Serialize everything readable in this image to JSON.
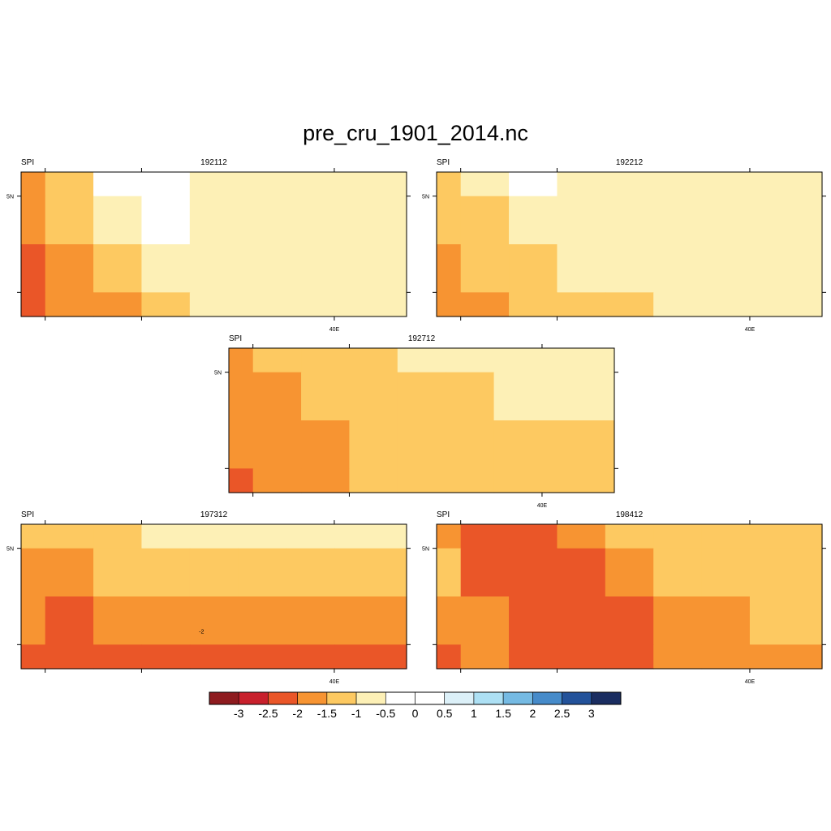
{
  "figure": {
    "title": "pre_cru_1901_2014.nc"
  },
  "chart_data": [
    {
      "type": "heatmap",
      "left_string": "SPI",
      "center_string": "192112",
      "x_tick_label": "40E",
      "y_tick_label": "5N",
      "grid": false,
      "rows": [
        [
          -1.75,
          -1.25,
          0,
          0,
          -0.75,
          -0.75,
          -0.75,
          -0.75
        ],
        [
          -1.75,
          -1.25,
          -0.75,
          0,
          -0.75,
          -0.75,
          -0.75,
          -0.75
        ],
        [
          -2.25,
          -1.75,
          -1.25,
          -0.75,
          -0.75,
          -0.75,
          -0.75,
          -0.75
        ],
        [
          -2.25,
          -1.75,
          -1.75,
          -1.25,
          -0.75,
          -0.75,
          -0.75,
          -0.75
        ]
      ]
    },
    {
      "type": "heatmap",
      "left_string": "SPI",
      "center_string": "192212",
      "x_tick_label": "40E",
      "y_tick_label": "5N",
      "grid": false,
      "rows": [
        [
          -1.25,
          -0.75,
          0,
          -0.75,
          -0.75,
          -0.75,
          -0.75,
          -0.75
        ],
        [
          -1.25,
          -1.25,
          -0.75,
          -0.75,
          -0.75,
          -0.75,
          -0.75,
          -0.75
        ],
        [
          -1.75,
          -1.25,
          -1.25,
          -0.75,
          -0.75,
          -0.75,
          -0.75,
          -0.75
        ],
        [
          -1.75,
          -1.75,
          -1.25,
          -1.25,
          -1.25,
          -0.75,
          -0.75,
          -0.75
        ]
      ]
    },
    {
      "type": "heatmap",
      "left_string": "SPI",
      "center_string": "192712",
      "x_tick_label": "40E",
      "y_tick_label": "5N",
      "grid": false,
      "rows": [
        [
          -1.75,
          -1.25,
          -1.25,
          -1.25,
          -0.75,
          -0.75,
          -0.75,
          -0.75
        ],
        [
          -1.75,
          -1.75,
          -1.25,
          -1.25,
          -1.25,
          -1.25,
          -0.75,
          -0.75
        ],
        [
          -1.75,
          -1.75,
          -1.75,
          -1.25,
          -1.25,
          -1.25,
          -1.25,
          -1.25
        ],
        [
          -2.25,
          -1.75,
          -1.75,
          -1.25,
          -1.25,
          -1.25,
          -1.25,
          -1.25
        ]
      ]
    },
    {
      "type": "heatmap",
      "left_string": "SPI",
      "center_string": "197312",
      "x_tick_label": "40E",
      "y_tick_label": "5N",
      "grid": false,
      "annotation": "-2",
      "rows": [
        [
          -1.25,
          -1.25,
          -1.25,
          -0.75,
          -0.75,
          -0.75,
          -0.75,
          -0.75
        ],
        [
          -1.75,
          -1.75,
          -1.25,
          -1.25,
          -1.25,
          -1.25,
          -1.25,
          -1.25
        ],
        [
          -1.75,
          -2.25,
          -1.75,
          -1.75,
          -1.75,
          -1.75,
          -1.75,
          -1.75
        ],
        [
          -2.25,
          -2.25,
          -2.25,
          -2.25,
          -2.25,
          -2.25,
          -2.25,
          -2.25
        ]
      ]
    },
    {
      "type": "heatmap",
      "left_string": "SPI",
      "center_string": "198412",
      "x_tick_label": "40E",
      "y_tick_label": "5N",
      "grid": false,
      "rows": [
        [
          -1.75,
          -2.25,
          -2.25,
          -1.75,
          -1.25,
          -1.25,
          -1.25,
          -1.25
        ],
        [
          -1.25,
          -2.25,
          -2.25,
          -2.25,
          -1.75,
          -1.25,
          -1.25,
          -1.25
        ],
        [
          -1.75,
          -1.75,
          -2.25,
          -2.25,
          -2.25,
          -1.75,
          -1.75,
          -1.25
        ],
        [
          -2.25,
          -1.75,
          -2.25,
          -2.25,
          -2.25,
          -1.75,
          -1.75,
          -1.75
        ]
      ]
    }
  ],
  "colorbar": {
    "colors": [
      "#8e1b1f",
      "#c8202c",
      "#ea5628",
      "#f79432",
      "#fdc961",
      "#fdf0b6",
      "#ffffff",
      "#ffffff",
      "#dcf0f8",
      "#ade0f4",
      "#75bae3",
      "#468bca",
      "#23529a",
      "#1a2d61"
    ],
    "labels": [
      "-3",
      "-2.5",
      "-2",
      "-1.5",
      "-1",
      "-0.5",
      "0",
      "0.5",
      "1",
      "1.5",
      "2",
      "2.5",
      "3"
    ]
  }
}
